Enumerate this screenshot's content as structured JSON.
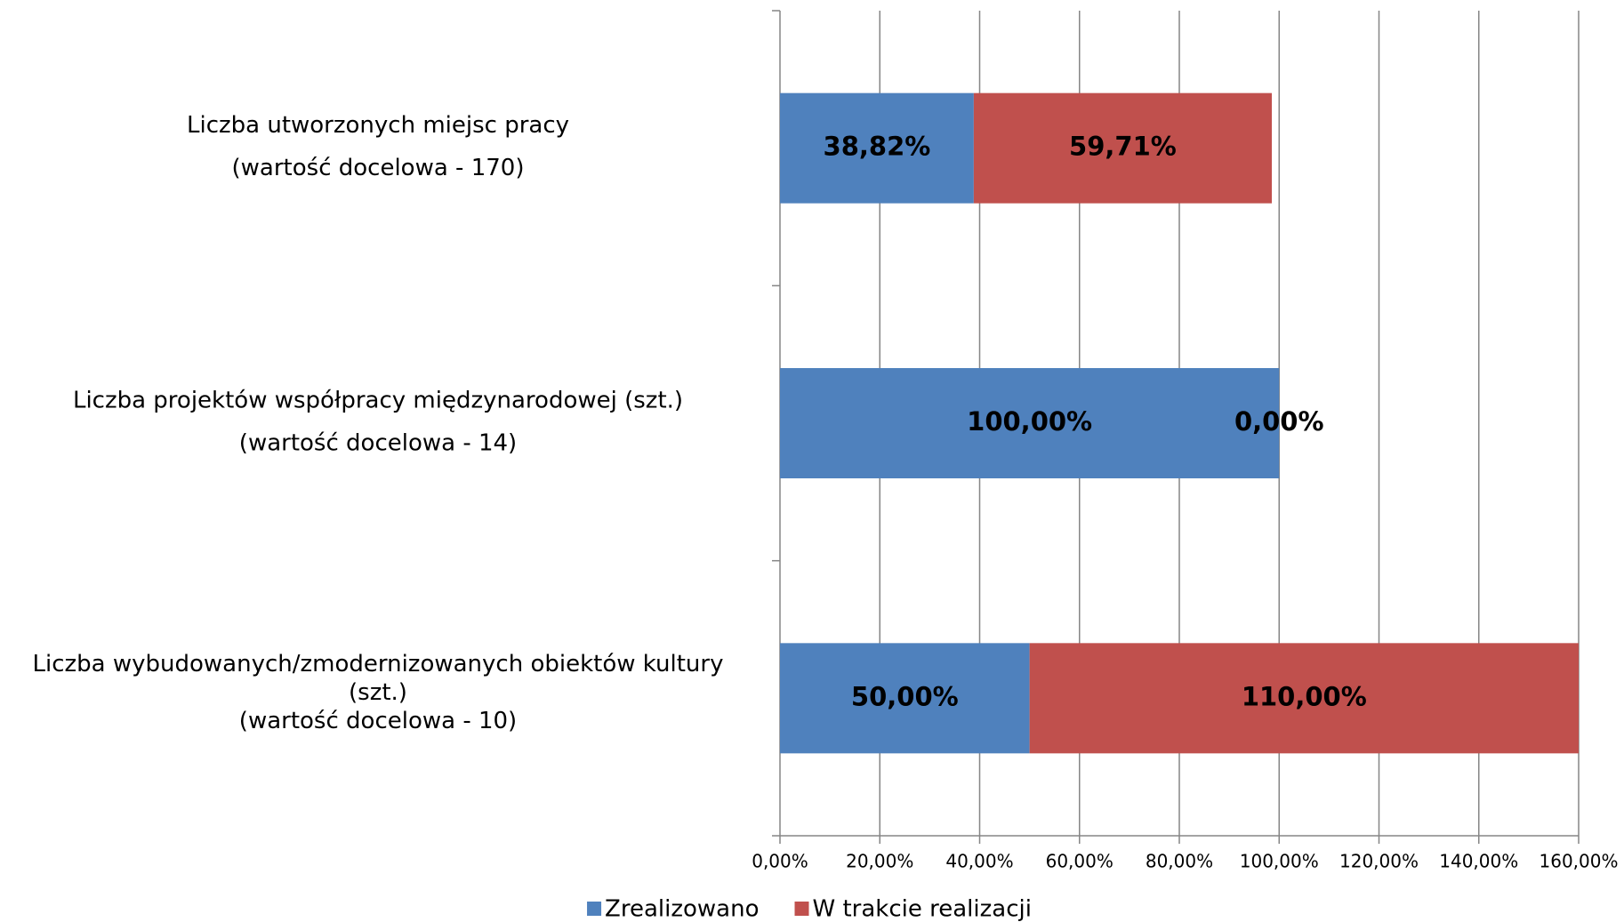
{
  "chart_data": {
    "type": "stacked-bar-horizontal",
    "categories": [
      [
        "Liczba utworzonych miejsc pracy",
        "(wartość docelowa - 170)"
      ],
      [
        "Liczba projektów współpracy międzynarodowej (szt.)",
        "(wartość docelowa - 14)"
      ],
      [
        "Liczba wybudowanych/zmodernizowanych obiektów kultury",
        "(szt.)",
        "(wartość docelowa - 10)"
      ]
    ],
    "series": [
      {
        "name": "Zrealizowano",
        "color": "#4f81bd",
        "values": [
          38.82,
          100,
          50
        ],
        "value_labels": [
          "38,82%",
          "100,00%",
          "50,00%"
        ]
      },
      {
        "name": "W trakcie realizacji",
        "color": "#c0504d",
        "values": [
          59.71,
          0,
          110
        ],
        "value_labels": [
          "59,71%",
          "0,00%",
          "110,00%"
        ]
      }
    ],
    "xlim": [
      0,
      160
    ],
    "xticks": [
      {
        "value": 0,
        "label": "0,00%"
      },
      {
        "value": 20,
        "label": "20,00%"
      },
      {
        "value": 40,
        "label": "40,00%"
      },
      {
        "value": 60,
        "label": "60,00%"
      },
      {
        "value": 80,
        "label": "80,00%"
      },
      {
        "value": 100,
        "label": "100,00%"
      },
      {
        "value": 120,
        "label": "120,00%"
      },
      {
        "value": 140,
        "label": "140,00%"
      },
      {
        "value": 160,
        "label": "160,00%"
      }
    ],
    "grid": true,
    "legend": "bottom"
  }
}
